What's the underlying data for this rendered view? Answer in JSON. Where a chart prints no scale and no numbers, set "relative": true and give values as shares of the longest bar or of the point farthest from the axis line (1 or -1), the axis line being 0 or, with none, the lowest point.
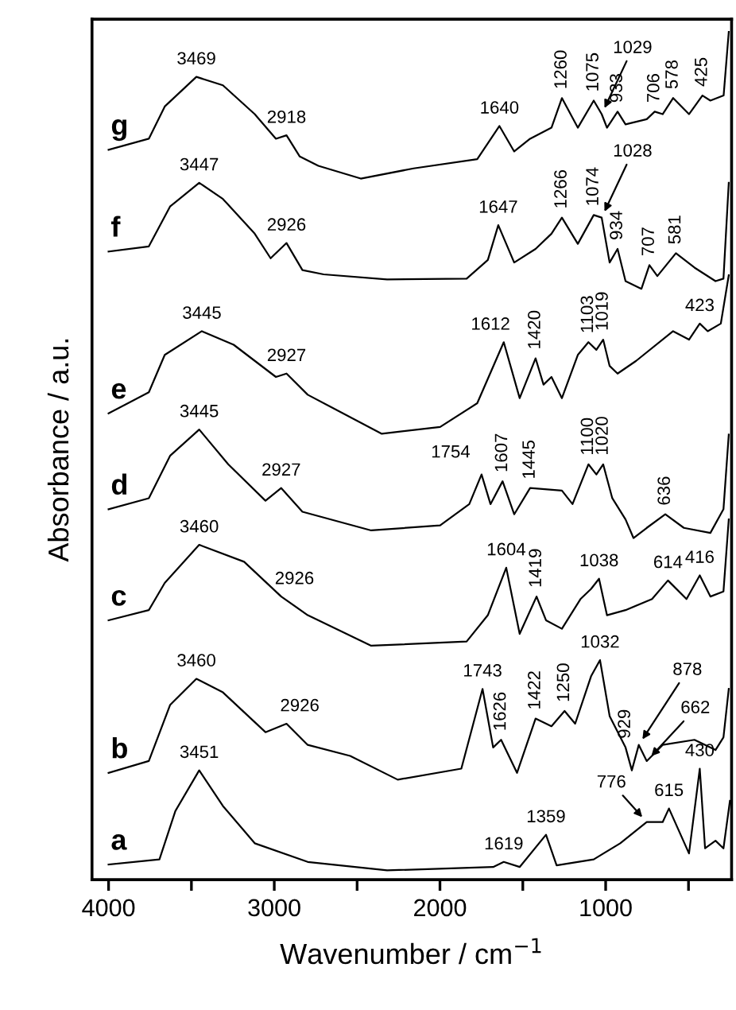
{
  "chart_data": {
    "type": "line",
    "relative": true,
    "xlabel": "Wavenumber / cm$^{−1}$",
    "ylabel": "Absorbance / a.u.",
    "xlim": [
      4100,
      240
    ],
    "xticks": [
      4000,
      {
        "value": 3500,
        "label": null
      },
      3000,
      {
        "value": 2500,
        "label": null
      },
      2000,
      {
        "value": 1500,
        "label": null
      },
      1000,
      {
        "value": 500,
        "label": null
      }
    ],
    "tick_labels": "x",
    "grid": false,
    "legend": false,
    "marker": "none",
    "line_style": "solid",
    "series": [
      {
        "name": "a",
        "color": "#000000",
        "x": [
          4000,
          3693,
          3597,
          3453,
          3310,
          3118,
          2798,
          2319,
          1679,
          1615,
          1519,
          1360,
          1296,
          1072,
          912,
          752,
          656,
          618,
          497,
          432,
          400,
          337,
          289,
          250
        ],
        "values": [
          0.018,
          0.024,
          0.081,
          0.129,
          0.087,
          0.043,
          0.021,
          0.011,
          0.015,
          0.021,
          0.015,
          0.053,
          0.017,
          0.024,
          0.043,
          0.068,
          0.068,
          0.084,
          0.031,
          0.131,
          0.037,
          0.046,
          0.037,
          0.093
        ]
      },
      {
        "name": "b",
        "color": "#000000",
        "x": [
          4000,
          3757,
          3629,
          3470,
          3310,
          3053,
          2926,
          2798,
          2542,
          2255,
          1871,
          1743,
          1679,
          1631,
          1535,
          1423,
          1327,
          1248,
          1184,
          1088,
          1034,
          976,
          880,
          842,
          800,
          752,
          656,
          464,
          337,
          289,
          257
        ],
        "values": [
          0.126,
          0.14,
          0.206,
          0.237,
          0.221,
          0.174,
          0.184,
          0.159,
          0.146,
          0.118,
          0.131,
          0.225,
          0.156,
          0.165,
          0.126,
          0.19,
          0.181,
          0.199,
          0.184,
          0.24,
          0.259,
          0.193,
          0.156,
          0.129,
          0.159,
          0.14,
          0.159,
          0.165,
          0.153,
          0.168,
          0.225
        ]
      },
      {
        "name": "c",
        "color": "#000000",
        "x": [
          4000,
          3757,
          3661,
          3453,
          3182,
          2958,
          2798,
          2415,
          1839,
          1711,
          1600,
          1519,
          1417,
          1360,
          1264,
          1152,
          1088,
          1040,
          992,
          880,
          720,
          624,
          512,
          432,
          368,
          289,
          257
        ],
        "values": [
          0.306,
          0.318,
          0.35,
          0.395,
          0.375,
          0.334,
          0.312,
          0.276,
          0.281,
          0.312,
          0.368,
          0.29,
          0.334,
          0.306,
          0.296,
          0.331,
          0.343,
          0.355,
          0.312,
          0.318,
          0.331,
          0.353,
          0.331,
          0.359,
          0.334,
          0.34,
          0.425
        ]
      },
      {
        "name": "d",
        "color": "#000000",
        "x": [
          4000,
          3757,
          3629,
          3453,
          3278,
          3053,
          2958,
          2830,
          2415,
          1999,
          1823,
          1749,
          1695,
          1622,
          1552,
          1456,
          1264,
          1200,
          1104,
          1056,
          1015,
          960,
          880,
          832,
          752,
          640,
          528,
          368,
          289,
          257
        ],
        "values": [
          0.437,
          0.45,
          0.5,
          0.531,
          0.49,
          0.447,
          0.462,
          0.434,
          0.412,
          0.418,
          0.443,
          0.478,
          0.443,
          0.47,
          0.431,
          0.462,
          0.459,
          0.443,
          0.49,
          0.478,
          0.49,
          0.45,
          0.425,
          0.403,
          0.415,
          0.431,
          0.415,
          0.409,
          0.437,
          0.525
        ]
      },
      {
        "name": "e",
        "color": "#000000",
        "x": [
          4000,
          3757,
          3661,
          3437,
          3245,
          2990,
          2926,
          2798,
          2351,
          1999,
          1775,
          1615,
          1519,
          1423,
          1375,
          1327,
          1264,
          1168,
          1104,
          1056,
          1015,
          976,
          928,
          816,
          593,
          497,
          432,
          384,
          305,
          257
        ],
        "values": [
          0.55,
          0.575,
          0.619,
          0.647,
          0.631,
          0.593,
          0.597,
          0.572,
          0.526,
          0.534,
          0.562,
          0.634,
          0.568,
          0.615,
          0.584,
          0.593,
          0.568,
          0.619,
          0.634,
          0.625,
          0.637,
          0.606,
          0.597,
          0.612,
          0.647,
          0.637,
          0.656,
          0.647,
          0.656,
          0.713
        ]
      },
      {
        "name": "f",
        "color": "#000000",
        "x": [
          4000,
          3757,
          3629,
          3453,
          3310,
          3118,
          3022,
          2926,
          2830,
          2702,
          2319,
          1839,
          1711,
          1648,
          1552,
          1423,
          1327,
          1264,
          1168,
          1072,
          1024,
          976,
          928,
          880,
          784,
          736,
          688,
          576,
          464,
          337,
          289,
          257
        ],
        "values": [
          0.741,
          0.747,
          0.794,
          0.822,
          0.803,
          0.762,
          0.733,
          0.751,
          0.719,
          0.714,
          0.708,
          0.709,
          0.731,
          0.772,
          0.728,
          0.744,
          0.762,
          0.781,
          0.75,
          0.784,
          0.781,
          0.728,
          0.744,
          0.706,
          0.697,
          0.725,
          0.712,
          0.739,
          0.722,
          0.706,
          0.709,
          0.822
        ]
      },
      {
        "name": "g",
        "color": "#000000",
        "x": [
          4000,
          3757,
          3661,
          3470,
          3310,
          3118,
          2990,
          2926,
          2846,
          2734,
          2478,
          2159,
          1775,
          1641,
          1552,
          1456,
          1327,
          1264,
          1168,
          1072,
          1024,
          992,
          928,
          880,
          752,
          704,
          656,
          593,
          497,
          416,
          368,
          288,
          257
        ],
        "values": [
          0.861,
          0.874,
          0.912,
          0.947,
          0.937,
          0.903,
          0.874,
          0.878,
          0.853,
          0.842,
          0.827,
          0.839,
          0.85,
          0.889,
          0.859,
          0.874,
          0.887,
          0.922,
          0.887,
          0.919,
          0.903,
          0.887,
          0.906,
          0.891,
          0.897,
          0.906,
          0.903,
          0.922,
          0.903,
          0.925,
          0.919,
          0.925,
          1.0
        ]
      }
    ],
    "annotations": [
      {
        "text": "3469",
        "x": 3470,
        "y": 0.947
      },
      {
        "text": "2918",
        "x": 2926,
        "y": 0.878
      },
      {
        "text": "1640",
        "x": 1641,
        "y": 0.889
      },
      {
        "text": "1260",
        "x": 1264,
        "y": 0.922
      },
      {
        "text": "1075",
        "x": 1072,
        "y": 0.919
      },
      {
        "text": "1029",
        "x": 1024,
        "y": 0.903
      },
      {
        "text": "933",
        "x": 928,
        "y": 0.906
      },
      {
        "text": "706",
        "x": 704,
        "y": 0.906
      },
      {
        "text": "578",
        "x": 593,
        "y": 0.922
      },
      {
        "text": "425",
        "x": 416,
        "y": 0.925
      },
      {
        "text": "3447",
        "x": 3453,
        "y": 0.822
      },
      {
        "text": "2926",
        "x": 2926,
        "y": 0.751
      },
      {
        "text": "1647",
        "x": 1648,
        "y": 0.772
      },
      {
        "text": "1266",
        "x": 1264,
        "y": 0.781
      },
      {
        "text": "1074",
        "x": 1072,
        "y": 0.784
      },
      {
        "text": "1028",
        "x": 1024,
        "y": 0.781
      },
      {
        "text": "934",
        "x": 928,
        "y": 0.744
      },
      {
        "text": "707",
        "x": 736,
        "y": 0.725
      },
      {
        "text": "581",
        "x": 576,
        "y": 0.739
      },
      {
        "text": "3445",
        "x": 3437,
        "y": 0.647
      },
      {
        "text": "2927",
        "x": 2926,
        "y": 0.597
      },
      {
        "text": "1612",
        "x": 1615,
        "y": 0.634
      },
      {
        "text": "1420",
        "x": 1423,
        "y": 0.615
      },
      {
        "text": "1103",
        "x": 1104,
        "y": 0.634
      },
      {
        "text": "1019",
        "x": 1015,
        "y": 0.637
      },
      {
        "text": "423",
        "x": 432,
        "y": 0.656
      },
      {
        "text": "3445",
        "x": 3453,
        "y": 0.531
      },
      {
        "text": "2927",
        "x": 2958,
        "y": 0.462
      },
      {
        "text": "1754",
        "x": 1749,
        "y": 0.478
      },
      {
        "text": "1607",
        "x": 1622,
        "y": 0.47
      },
      {
        "text": "1445",
        "x": 1456,
        "y": 0.462
      },
      {
        "text": "1100",
        "x": 1104,
        "y": 0.49
      },
      {
        "text": "1020",
        "x": 1015,
        "y": 0.49
      },
      {
        "text": "636",
        "x": 640,
        "y": 0.431
      },
      {
        "text": "3460",
        "x": 3453,
        "y": 0.395
      },
      {
        "text": "2926",
        "x": 2958,
        "y": 0.334
      },
      {
        "text": "1604",
        "x": 1600,
        "y": 0.368
      },
      {
        "text": "1419",
        "x": 1417,
        "y": 0.334
      },
      {
        "text": "1038",
        "x": 1040,
        "y": 0.355
      },
      {
        "text": "614",
        "x": 624,
        "y": 0.353
      },
      {
        "text": "416",
        "x": 432,
        "y": 0.359
      },
      {
        "text": "3460",
        "x": 3470,
        "y": 0.237
      },
      {
        "text": "2926",
        "x": 2926,
        "y": 0.184
      },
      {
        "text": "1743",
        "x": 1743,
        "y": 0.225
      },
      {
        "text": "1626",
        "x": 1631,
        "y": 0.165
      },
      {
        "text": "1422",
        "x": 1423,
        "y": 0.19
      },
      {
        "text": "1250",
        "x": 1248,
        "y": 0.199
      },
      {
        "text": "1032",
        "x": 1034,
        "y": 0.259
      },
      {
        "text": "929",
        "x": 880,
        "y": 0.156
      },
      {
        "text": "878",
        "x": 800,
        "y": 0.159
      },
      {
        "text": "662",
        "x": 752,
        "y": 0.14
      },
      {
        "text": "3451",
        "x": 3453,
        "y": 0.129
      },
      {
        "text": "1619",
        "x": 1615,
        "y": 0.021
      },
      {
        "text": "1359",
        "x": 1360,
        "y": 0.053
      },
      {
        "text": "776",
        "x": 752,
        "y": 0.068
      },
      {
        "text": "615",
        "x": 618,
        "y": 0.084
      },
      {
        "text": "430",
        "x": 432,
        "y": 0.131
      }
    ]
  }
}
